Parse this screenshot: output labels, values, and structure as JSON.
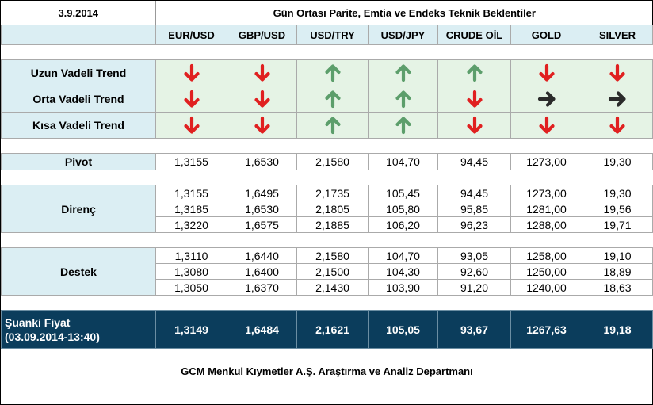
{
  "header": {
    "date": "3.9.2014",
    "title": "Gün Ortası Parite, Emtia ve Endeks Teknik Beklentiler"
  },
  "columns": [
    "EUR/USD",
    "GBP/USD",
    "USD/TRY",
    "USD/JPY",
    "CRUDE OİL",
    "GOLD",
    "SILVER"
  ],
  "trends": [
    {
      "label": "Uzun Vadeli Trend",
      "directions": [
        "down",
        "down",
        "up",
        "up",
        "up",
        "down",
        "down"
      ]
    },
    {
      "label": "Orta Vadeli Trend",
      "directions": [
        "down",
        "down",
        "up",
        "up",
        "down",
        "right",
        "right"
      ]
    },
    {
      "label": "Kısa Vadeli Trend",
      "directions": [
        "down",
        "down",
        "up",
        "up",
        "down",
        "down",
        "down"
      ]
    }
  ],
  "arrow_colors": {
    "up": "#5c9e6b",
    "down": "#e02020",
    "right": "#2b2b2b"
  },
  "pivot": {
    "label": "Pivot",
    "values": [
      "1,3155",
      "1,6530",
      "2,1580",
      "104,70",
      "94,45",
      "1273,00",
      "19,30"
    ]
  },
  "resistance": {
    "label": "Direnç",
    "rows": [
      [
        "1,3155",
        "1,6495",
        "2,1735",
        "105,45",
        "94,45",
        "1273,00",
        "19,30"
      ],
      [
        "1,3185",
        "1,6530",
        "2,1805",
        "105,80",
        "95,85",
        "1281,00",
        "19,56"
      ],
      [
        "1,3220",
        "1,6575",
        "2,1885",
        "106,20",
        "96,23",
        "1288,00",
        "19,71"
      ]
    ]
  },
  "support": {
    "label": "Destek",
    "rows": [
      [
        "1,3110",
        "1,6440",
        "2,1580",
        "104,70",
        "93,05",
        "1258,00",
        "19,10"
      ],
      [
        "1,3080",
        "1,6400",
        "2,1500",
        "104,30",
        "92,60",
        "1250,00",
        "18,89"
      ],
      [
        "1,3050",
        "1,6370",
        "2,1430",
        "103,90",
        "91,20",
        "1240,00",
        "18,63"
      ]
    ]
  },
  "current_price": {
    "label_line1": "Şuanki Fiyat",
    "label_line2": "(03.09.2014-13:40)",
    "values": [
      "1,3149",
      "1,6484",
      "2,1621",
      "105,05",
      "93,67",
      "1267,63",
      "19,18"
    ]
  },
  "footer": {
    "text": "GCM Menkul Kıymetler A.Ş. Araştırma ve Analiz Departmanı"
  }
}
